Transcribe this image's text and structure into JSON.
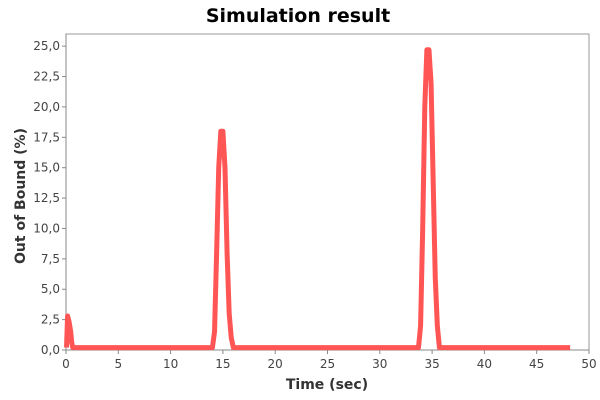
{
  "chart_data": {
    "type": "line",
    "title": "Simulation result",
    "xlabel": "Time (sec)",
    "ylabel": "Out of Bound (%)",
    "xlim": [
      0,
      50
    ],
    "ylim": [
      0,
      26
    ],
    "x_ticks": [
      0,
      5,
      10,
      15,
      20,
      25,
      30,
      35,
      40,
      45,
      50
    ],
    "y_ticks": [
      0,
      2.5,
      5,
      7.5,
      10,
      12.5,
      15,
      17.5,
      20,
      22.5,
      25
    ],
    "x_tick_labels": [
      "0",
      "5",
      "10",
      "15",
      "20",
      "25",
      "30",
      "35",
      "40",
      "45",
      "50"
    ],
    "y_tick_labels": [
      "0,0",
      "2,5",
      "5,0",
      "7,5",
      "10,0",
      "12,5",
      "15,0",
      "17,5",
      "20,0",
      "22,5",
      "25,0"
    ],
    "grid": false,
    "legend": "none",
    "series_color": "#ff5555",
    "series": [
      {
        "x": [
          0.05,
          0.15,
          0.3,
          0.45,
          0.55,
          0.65,
          14.0,
          14.2,
          14.4,
          14.6,
          14.8,
          15.0,
          15.2,
          15.4,
          15.6,
          15.8,
          16.0,
          33.7,
          33.9,
          34.1,
          34.3,
          34.5,
          34.7,
          34.9,
          35.1,
          35.3,
          35.5,
          35.7,
          48.2
        ],
        "y": [
          0.2,
          2.8,
          2.3,
          1.5,
          0.6,
          0.2,
          0.2,
          1.5,
          8.0,
          15.0,
          18.0,
          18.0,
          15.0,
          8.0,
          3.0,
          1.0,
          0.2,
          0.2,
          2.0,
          10.0,
          20.0,
          24.7,
          24.7,
          22.0,
          14.0,
          6.0,
          2.0,
          0.2,
          0.2
        ]
      }
    ]
  }
}
